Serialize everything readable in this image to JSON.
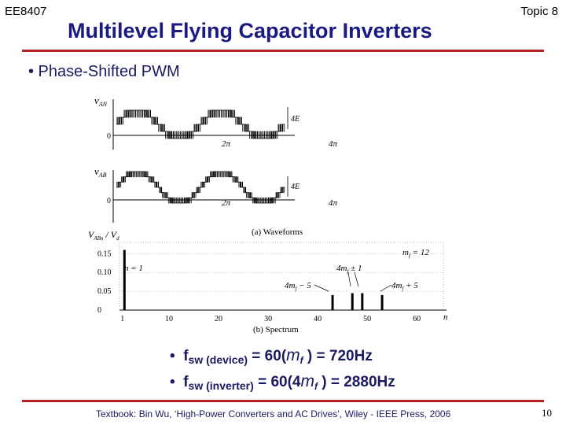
{
  "header": {
    "course": "EE8407",
    "topic": "Topic 8",
    "title": "Multilevel Flying Capacitor Inverters"
  },
  "bullet_main": "• Phase-Shifted PWM",
  "figure": {
    "van_label": "v",
    "van_sub": "AN",
    "vab_label": "v",
    "vab_sub": "AB",
    "zero": "0",
    "four_e": "4E",
    "two_pi": "2π",
    "four_pi": "4π",
    "waveforms_caption": "(a) Waveforms",
    "spectrum_ylabel_a": "V",
    "spectrum_ylabel_sub": "ABn",
    "spectrum_ylabel_b": " / V",
    "spectrum_ylabel_sub2": "d",
    "yticks": [
      "0.15",
      "0.10",
      "0.05",
      "0"
    ],
    "xticks": [
      "1",
      "10",
      "20",
      "30",
      "40",
      "50",
      "60"
    ],
    "x_axis_n": "n",
    "n1_label": "n = 1",
    "mf_label": "m",
    "mf_value": " = 12",
    "ann_4mf_minus5": "4m",
    "ann_minus5": " − 5",
    "ann_4mf_pm1": "4m",
    "ann_pm1": " ± 1",
    "ann_4mf_plus5": "4m",
    "ann_plus5": " + 5",
    "spectrum_caption": "(b) Spectrum"
  },
  "chart_data": {
    "type": "bar",
    "title": "",
    "xlabel": "n",
    "ylabel": "V_ABn / V_d",
    "xlim": [
      0,
      66
    ],
    "ylim": [
      0,
      0.18
    ],
    "xticks": [
      1,
      10,
      20,
      30,
      40,
      50,
      60
    ],
    "yticks": [
      0,
      0.05,
      0.1,
      0.15
    ],
    "bars": [
      {
        "n": 1,
        "value": 0.16
      },
      {
        "n": 43,
        "value": 0.04
      },
      {
        "n": 47,
        "value": 0.045
      },
      {
        "n": 49,
        "value": 0.045
      },
      {
        "n": 53,
        "value": 0.04
      }
    ]
  },
  "equations": {
    "eq1_f": "f",
    "eq1_sub": "sw (device)",
    "eq1_mid": " = 60(",
    "eq1_m": "m",
    "eq1_msub": "f",
    "eq1_end": " ) = 720Hz",
    "eq2_f": "f",
    "eq2_sub": "sw (inverter)",
    "eq2_mid": " = 60(4",
    "eq2_m": "m",
    "eq2_msub": "f",
    "eq2_end": " ) = 2880Hz",
    "bullet": "•"
  },
  "footer": "Textbook: Bin Wu, ‘High-Power Converters and AC Drives’, Wiley - IEEE Press, 2006",
  "page_number": "10"
}
